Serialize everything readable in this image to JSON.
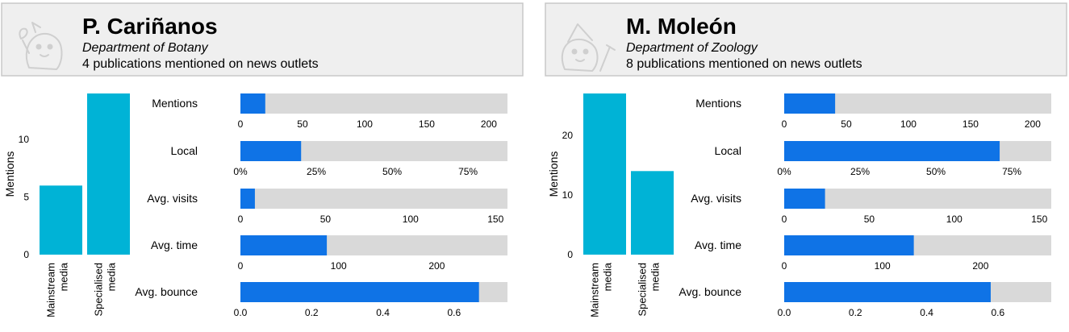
{
  "colors": {
    "bar_column": "#00b3d6",
    "bar_metric": "#0f73e6",
    "track": "#d9d9d9",
    "card_bg": "#efefef",
    "card_border": "#c8c8c8"
  },
  "panels": [
    {
      "name": "P. Cariñanos",
      "department": "Department of Botany",
      "publications": "4 publications mentioned on news outlets",
      "avatar_icon": "botanist-cartoon-icon"
    },
    {
      "name": "M. Moleón",
      "department": "Department of Zoology",
      "publications": "8 publications mentioned on news outlets",
      "avatar_icon": "zoologist-cartoon-icon"
    }
  ],
  "chart_data": [
    {
      "type": "bar",
      "ylabel": "Mentions",
      "categories": [
        "Mainstream\nmedia",
        "Specialised\nmedia"
      ],
      "values": [
        6,
        14
      ],
      "ylim": [
        0,
        14
      ],
      "yticks": [
        0,
        5,
        10
      ],
      "metrics": [
        {
          "label": "Mentions",
          "value": 20,
          "max": 215,
          "ticks": [
            {
              "v": 0,
              "t": "0"
            },
            {
              "v": 50,
              "t": "50"
            },
            {
              "v": 100,
              "t": "100"
            },
            {
              "v": 150,
              "t": "150"
            },
            {
              "v": 200,
              "t": "200"
            }
          ]
        },
        {
          "label": "Local",
          "value": 0.2,
          "max": 0.88,
          "ticks": [
            {
              "v": 0,
              "t": "0%"
            },
            {
              "v": 0.25,
              "t": "25%"
            },
            {
              "v": 0.5,
              "t": "50%"
            },
            {
              "v": 0.75,
              "t": "75%"
            }
          ]
        },
        {
          "label": "Avg. visits",
          "value": 8.5,
          "max": 157,
          "ticks": [
            {
              "v": 0,
              "t": "0"
            },
            {
              "v": 50,
              "t": "50"
            },
            {
              "v": 100,
              "t": "100"
            },
            {
              "v": 150,
              "t": "150"
            }
          ]
        },
        {
          "label": "Avg. time",
          "value": 88,
          "max": 272,
          "ticks": [
            {
              "v": 0,
              "t": "0"
            },
            {
              "v": 100,
              "t": "100"
            },
            {
              "v": 200,
              "t": "200"
            }
          ]
        },
        {
          "label": "Avg. bounce",
          "value": 0.67,
          "max": 0.75,
          "ticks": [
            {
              "v": 0,
              "t": "0.0"
            },
            {
              "v": 0.2,
              "t": "0.2"
            },
            {
              "v": 0.4,
              "t": "0.4"
            },
            {
              "v": 0.6,
              "t": "0.6"
            }
          ]
        }
      ]
    },
    {
      "type": "bar",
      "ylabel": "Mentions",
      "categories": [
        "Mainstream\nmedia",
        "Specialised\nmedia"
      ],
      "values": [
        27,
        14
      ],
      "ylim": [
        0,
        27
      ],
      "yticks": [
        0,
        10,
        20
      ],
      "metrics": [
        {
          "label": "Mentions",
          "value": 41,
          "max": 215,
          "ticks": [
            {
              "v": 0,
              "t": "0"
            },
            {
              "v": 50,
              "t": "50"
            },
            {
              "v": 100,
              "t": "100"
            },
            {
              "v": 150,
              "t": "150"
            },
            {
              "v": 200,
              "t": "200"
            }
          ]
        },
        {
          "label": "Local",
          "value": 0.71,
          "max": 0.88,
          "ticks": [
            {
              "v": 0,
              "t": "0%"
            },
            {
              "v": 0.25,
              "t": "25%"
            },
            {
              "v": 0.5,
              "t": "50%"
            },
            {
              "v": 0.75,
              "t": "75%"
            }
          ]
        },
        {
          "label": "Avg. visits",
          "value": 24,
          "max": 157,
          "ticks": [
            {
              "v": 0,
              "t": "0"
            },
            {
              "v": 50,
              "t": "50"
            },
            {
              "v": 100,
              "t": "100"
            },
            {
              "v": 150,
              "t": "150"
            }
          ]
        },
        {
          "label": "Avg. time",
          "value": 132,
          "max": 272,
          "ticks": [
            {
              "v": 0,
              "t": "0"
            },
            {
              "v": 100,
              "t": "100"
            },
            {
              "v": 200,
              "t": "200"
            }
          ]
        },
        {
          "label": "Avg. bounce",
          "value": 0.58,
          "max": 0.75,
          "ticks": [
            {
              "v": 0,
              "t": "0.0"
            },
            {
              "v": 0.2,
              "t": "0.2"
            },
            {
              "v": 0.4,
              "t": "0.4"
            },
            {
              "v": 0.6,
              "t": "0.6"
            }
          ]
        }
      ]
    }
  ]
}
